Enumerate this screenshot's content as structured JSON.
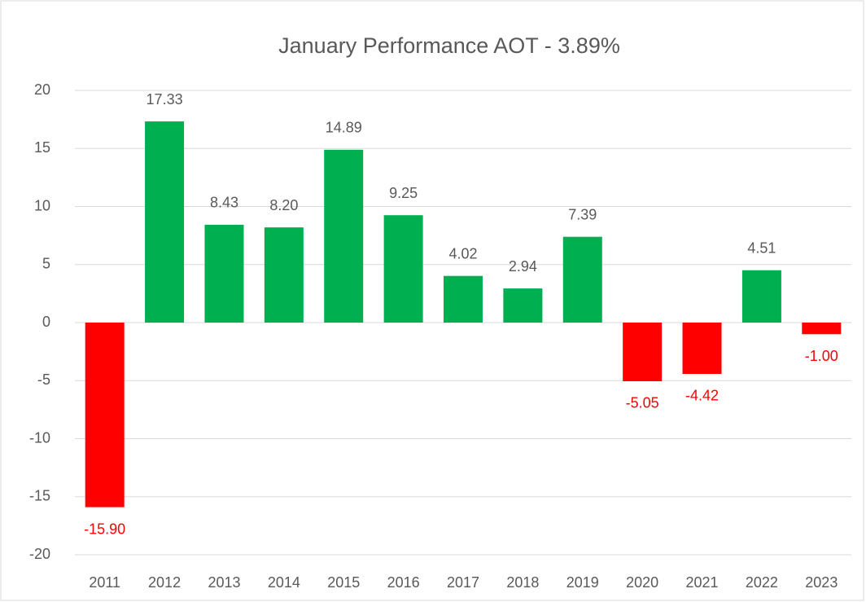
{
  "chart_data": {
    "type": "bar",
    "title": "January Performance AOT - 3.89%",
    "categories": [
      "2011",
      "2012",
      "2013",
      "2014",
      "2015",
      "2016",
      "2017",
      "2018",
      "2019",
      "2020",
      "2021",
      "2022",
      "2023"
    ],
    "values": [
      -15.9,
      17.33,
      8.43,
      8.2,
      14.89,
      9.25,
      4.02,
      2.94,
      7.39,
      -5.05,
      -4.42,
      4.51,
      -1.0
    ],
    "value_labels": [
      "-15.90",
      "17.33",
      "8.43",
      "8.20",
      "14.89",
      "9.25",
      "4.02",
      "2.94",
      "7.39",
      "-5.05",
      "-4.42",
      "4.51",
      "-1.00"
    ],
    "positive_color": "#00b050",
    "negative_color": "#ff0000",
    "ylim": [
      -20,
      20
    ],
    "yticks": [
      -20,
      -15,
      -10,
      -5,
      0,
      5,
      10,
      15,
      20
    ],
    "grid": true
  }
}
